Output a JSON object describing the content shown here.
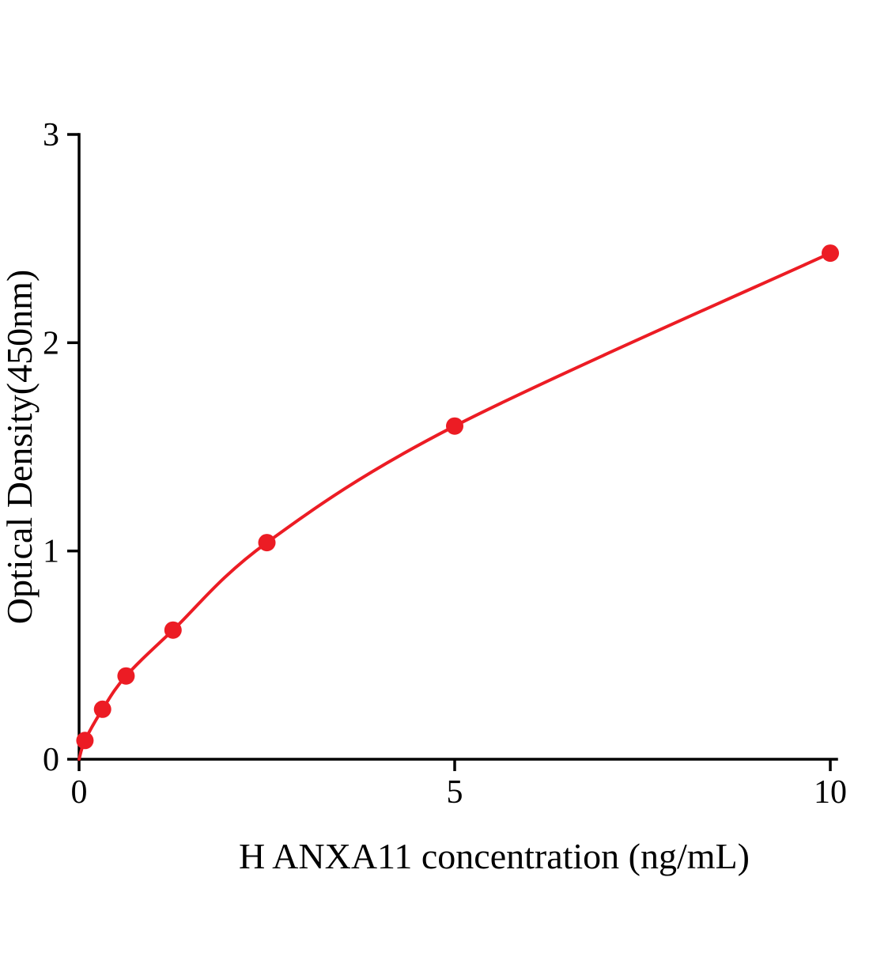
{
  "chart_data": {
    "type": "scatter",
    "title": "",
    "xlabel": "H ANXA11 concentration (ng/mL)",
    "ylabel": "Optical Density(450nm)",
    "xlim": [
      0,
      10
    ],
    "ylim": [
      0,
      3
    ],
    "xticks": [
      0,
      5,
      10
    ],
    "yticks": [
      0,
      1,
      2,
      3
    ],
    "grid": false,
    "legend": "none",
    "curve_start": [
      0,
      0
    ],
    "x": [
      0.078,
      0.3125,
      0.625,
      1.25,
      2.5,
      5,
      10
    ],
    "y": [
      0.09,
      0.24,
      0.4,
      0.62,
      1.04,
      1.6,
      2.43
    ],
    "line_color": "#EC1C24",
    "marker_color": "#EC1C24",
    "axis_color": "#000000"
  }
}
